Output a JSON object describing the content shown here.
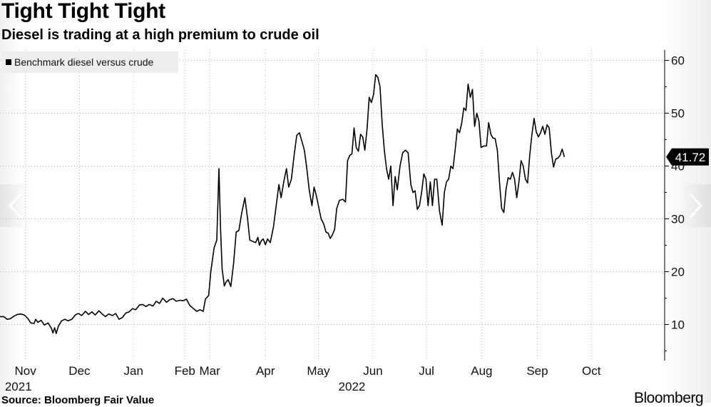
{
  "title": "Tight Tight Tight",
  "subtitle": "Diesel is trading at a high premium to crude oil",
  "source": "Source: Bloomberg Fair Value",
  "brand": "Bloomberg",
  "colors": {
    "line": "#000000",
    "grid": "#b8b8b8",
    "legend_bg": "#eeeeee",
    "last_label_bg": "#000000",
    "last_label_text": "#ffffff"
  },
  "chart_data": {
    "type": "line",
    "title": "Tight Tight Tight",
    "subtitle": "Diesel is trading at a high premium to crude oil",
    "xlabel": "",
    "ylabel": "",
    "ylim": [
      3,
      62
    ],
    "yticks": [
      10,
      20,
      30,
      40,
      50,
      60
    ],
    "y_axis_side": "right",
    "grid": true,
    "legend_position": "top-left",
    "x_month_ticks": [
      {
        "label": "Nov",
        "t": 11.5
      },
      {
        "label": "Dec",
        "t": 21.5
      },
      {
        "label": "Jan",
        "t": 31.5
      },
      {
        "label": "Feb",
        "t": 41
      },
      {
        "label": "Mar",
        "t": 45.5,
        "placeholder": true
      },
      {
        "label": "Mar",
        "t": 45.6
      },
      {
        "label": "Apr",
        "t": 55.9
      },
      {
        "label": "May",
        "t": 65.7
      },
      {
        "label": "Jun",
        "t": 75.8
      },
      {
        "label": "Jul",
        "t": 85.7
      },
      {
        "label": "Aug",
        "t": 95.9
      },
      {
        "label": "Sep",
        "t": 106.2
      },
      {
        "label": "Oct",
        "t": 116.2
      }
    ],
    "year_labels": [
      {
        "label": "2021",
        "t": 10.2
      },
      {
        "label": "2022",
        "t": 71.9
      }
    ],
    "x_range": [
      6.8,
      121.5
    ],
    "series": [
      {
        "name": "Benchmark diesel versus crude",
        "last_value": "41.72",
        "points": [
          [
            6.8,
            11.5
          ],
          [
            7.5,
            11.5
          ],
          [
            8.1,
            11.0
          ],
          [
            8.7,
            11.1
          ],
          [
            9.4,
            11.6
          ],
          [
            10.0,
            11.9
          ],
          [
            10.6,
            12.0
          ],
          [
            11.3,
            11.8
          ],
          [
            11.9,
            11.2
          ],
          [
            12.5,
            10.3
          ],
          [
            13.1,
            10.2
          ],
          [
            13.4,
            11.0
          ],
          [
            13.8,
            10.4
          ],
          [
            14.4,
            10.8
          ],
          [
            15.0,
            9.9
          ],
          [
            15.7,
            10.3
          ],
          [
            16.3,
            9.3
          ],
          [
            16.6,
            8.4
          ],
          [
            16.9,
            9.4
          ],
          [
            17.2,
            8.3
          ],
          [
            17.6,
            9.7
          ],
          [
            18.2,
            10.7
          ],
          [
            18.8,
            11.0
          ],
          [
            19.4,
            10.7
          ],
          [
            20.1,
            11.0
          ],
          [
            20.7,
            11.8
          ],
          [
            21.3,
            12.1
          ],
          [
            21.9,
            11.7
          ],
          [
            22.6,
            12.5
          ],
          [
            23.2,
            11.9
          ],
          [
            23.8,
            12.4
          ],
          [
            24.4,
            11.8
          ],
          [
            25.1,
            12.6
          ],
          [
            25.7,
            12.0
          ],
          [
            26.3,
            11.5
          ],
          [
            26.9,
            12.0
          ],
          [
            27.6,
            11.7
          ],
          [
            28.2,
            12.1
          ],
          [
            28.8,
            11.0
          ],
          [
            29.4,
            11.3
          ],
          [
            30.1,
            12.2
          ],
          [
            30.7,
            12.4
          ],
          [
            31.3,
            13.0
          ],
          [
            31.9,
            12.8
          ],
          [
            32.6,
            13.7
          ],
          [
            33.2,
            13.8
          ],
          [
            33.8,
            13.4
          ],
          [
            34.4,
            13.8
          ],
          [
            35.1,
            13.5
          ],
          [
            35.7,
            14.4
          ],
          [
            36.3,
            14.0
          ],
          [
            36.9,
            15.0
          ],
          [
            37.6,
            14.2
          ],
          [
            38.2,
            14.7
          ],
          [
            38.8,
            14.9
          ],
          [
            39.4,
            14.4
          ],
          [
            40.1,
            14.6
          ],
          [
            40.7,
            14.5
          ],
          [
            41.3,
            14.8
          ],
          [
            41.9,
            13.6
          ],
          [
            42.6,
            13.0
          ],
          [
            43.2,
            12.5
          ],
          [
            43.8,
            12.8
          ],
          [
            44.4,
            12.5
          ],
          [
            44.8,
            14.8
          ],
          [
            45.4,
            15.5
          ],
          [
            45.8,
            20.0
          ],
          [
            46.4,
            24.5
          ],
          [
            46.9,
            26.0
          ],
          [
            47.3,
            39.5
          ],
          [
            47.6,
            28.0
          ],
          [
            47.9,
            20.5
          ],
          [
            48.3,
            17.3
          ],
          [
            48.6,
            18.0
          ],
          [
            49.0,
            18.5
          ],
          [
            49.5,
            17.2
          ],
          [
            50.0,
            21.5
          ],
          [
            50.5,
            27.5
          ],
          [
            51.0,
            27.8
          ],
          [
            51.5,
            31.0
          ],
          [
            52.1,
            34.0
          ],
          [
            52.6,
            30.0
          ],
          [
            53.0,
            26.0
          ],
          [
            53.6,
            25.7
          ],
          [
            54.1,
            25.5
          ],
          [
            54.5,
            26.5
          ],
          [
            54.8,
            25.0
          ],
          [
            55.1,
            25.8
          ],
          [
            55.5,
            26.2
          ],
          [
            55.9,
            25.1
          ],
          [
            56.3,
            26.2
          ],
          [
            56.8,
            25.5
          ],
          [
            57.4,
            28.5
          ],
          [
            57.9,
            32.5
          ],
          [
            58.4,
            36.5
          ],
          [
            58.8,
            34.0
          ],
          [
            59.3,
            37.0
          ],
          [
            59.8,
            39.5
          ],
          [
            60.2,
            36.0
          ],
          [
            60.7,
            37.5
          ],
          [
            61.2,
            42.0
          ],
          [
            61.7,
            45.8
          ],
          [
            62.2,
            46.3
          ],
          [
            62.7,
            44.5
          ],
          [
            63.1,
            43.0
          ],
          [
            63.5,
            40.0
          ],
          [
            64.0,
            35.5
          ],
          [
            64.5,
            32.5
          ],
          [
            64.9,
            36.0
          ],
          [
            65.3,
            34.5
          ],
          [
            65.7,
            32.5
          ],
          [
            66.2,
            30.0
          ],
          [
            66.7,
            29.0
          ],
          [
            67.1,
            27.5
          ],
          [
            67.5,
            27.3
          ],
          [
            67.9,
            26.3
          ],
          [
            68.3,
            27.0
          ],
          [
            68.7,
            28.0
          ],
          [
            69.1,
            32.0
          ],
          [
            69.6,
            33.5
          ],
          [
            70.2,
            33.7
          ],
          [
            70.7,
            33.2
          ],
          [
            71.1,
            41.0
          ],
          [
            71.5,
            42.0
          ],
          [
            71.9,
            42.3
          ],
          [
            72.3,
            47.2
          ],
          [
            72.7,
            43.5
          ],
          [
            73.1,
            42.8
          ],
          [
            73.5,
            46.0
          ],
          [
            73.9,
            45.5
          ],
          [
            74.3,
            43.0
          ],
          [
            74.7,
            47.0
          ],
          [
            75.1,
            53.0
          ],
          [
            75.5,
            52.0
          ],
          [
            75.9,
            53.5
          ],
          [
            76.3,
            57.3
          ],
          [
            76.7,
            56.8
          ],
          [
            77.1,
            55.0
          ],
          [
            77.5,
            48.0
          ],
          [
            77.9,
            43.0
          ],
          [
            78.3,
            39.5
          ],
          [
            78.7,
            37.5
          ],
          [
            79.1,
            40.0
          ],
          [
            79.5,
            32.5
          ],
          [
            79.9,
            38.0
          ],
          [
            80.3,
            35.5
          ],
          [
            80.8,
            40.0
          ],
          [
            81.3,
            42.5
          ],
          [
            81.8,
            43.0
          ],
          [
            82.3,
            42.5
          ],
          [
            82.8,
            36.5
          ],
          [
            83.2,
            35.0
          ],
          [
            83.6,
            35.3
          ],
          [
            84.0,
            31.8
          ],
          [
            84.4,
            32.5
          ],
          [
            84.8,
            35.0
          ],
          [
            85.2,
            38.5
          ],
          [
            85.6,
            37.5
          ],
          [
            86.0,
            32.5
          ],
          [
            86.4,
            37.0
          ],
          [
            86.8,
            32.5
          ],
          [
            87.2,
            37.5
          ],
          [
            87.6,
            37.5
          ],
          [
            88.1,
            31.5
          ],
          [
            88.6,
            28.8
          ],
          [
            89.0,
            35.0
          ],
          [
            89.4,
            37.0
          ],
          [
            89.8,
            37.5
          ],
          [
            90.2,
            40.0
          ],
          [
            90.6,
            39.5
          ],
          [
            91.0,
            43.0
          ],
          [
            91.4,
            47.0
          ],
          [
            91.8,
            46.3
          ],
          [
            92.2,
            48.0
          ],
          [
            92.6,
            51.0
          ],
          [
            93.0,
            50.5
          ],
          [
            93.4,
            55.5
          ],
          [
            93.8,
            53.0
          ],
          [
            94.2,
            54.5
          ],
          [
            94.6,
            47.5
          ],
          [
            95.0,
            50.0
          ],
          [
            95.4,
            48.5
          ],
          [
            95.8,
            43.5
          ],
          [
            96.3,
            43.8
          ],
          [
            96.8,
            43.8
          ],
          [
            97.2,
            48.2
          ],
          [
            97.6,
            46.0
          ],
          [
            98.0,
            45.3
          ],
          [
            98.4,
            45.2
          ],
          [
            98.8,
            43.0
          ],
          [
            99.2,
            37.0
          ],
          [
            99.6,
            32.0
          ],
          [
            100.0,
            31.2
          ],
          [
            100.4,
            35.5
          ],
          [
            100.8,
            37.8
          ],
          [
            101.2,
            37.5
          ],
          [
            101.6,
            38.8
          ],
          [
            102.0,
            37.5
          ],
          [
            102.4,
            34.0
          ],
          [
            102.8,
            37.0
          ],
          [
            103.2,
            41.0
          ],
          [
            103.6,
            40.0
          ],
          [
            104.0,
            37.5
          ],
          [
            104.4,
            36.8
          ],
          [
            104.8,
            42.0
          ],
          [
            105.2,
            46.0
          ],
          [
            105.6,
            49.0
          ],
          [
            106.0,
            46.5
          ],
          [
            106.4,
            45.5
          ],
          [
            106.8,
            46.3
          ],
          [
            107.2,
            47.5
          ],
          [
            107.6,
            46.0
          ],
          [
            108.0,
            47.8
          ],
          [
            108.4,
            47.2
          ],
          [
            108.8,
            42.5
          ],
          [
            109.2,
            39.8
          ],
          [
            109.6,
            41.3
          ],
          [
            110.0,
            41.5
          ],
          [
            110.4,
            42.0
          ],
          [
            110.8,
            43.2
          ],
          [
            111.2,
            41.72
          ]
        ]
      }
    ]
  }
}
